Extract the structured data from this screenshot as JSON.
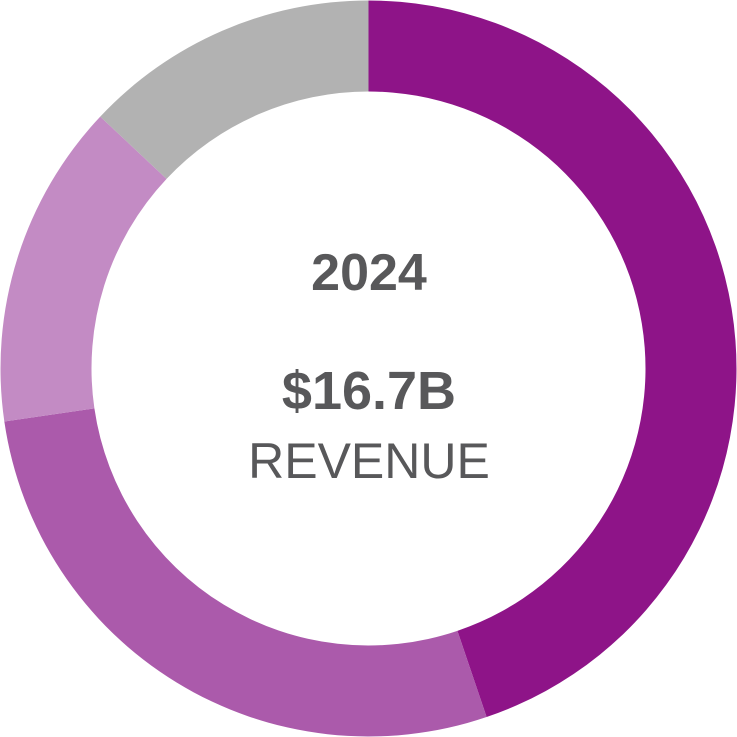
{
  "chart_data": {
    "type": "pie",
    "variant": "donut",
    "center": {
      "year": "2024",
      "value": "$16.7B",
      "label": "REVENUE"
    },
    "slices": [
      {
        "value": 44.8,
        "color": "#8e1488"
      },
      {
        "value": 27.9,
        "color": "#ab5aab"
      },
      {
        "value": 14.3,
        "color": "#c38bc4"
      },
      {
        "value": 13.0,
        "color": "#b2b2b2"
      }
    ],
    "start_angle_deg": 0,
    "direction": "clockwise"
  }
}
